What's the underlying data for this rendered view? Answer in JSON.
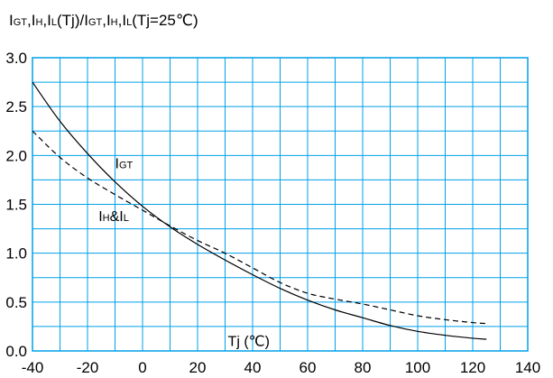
{
  "chart_data": {
    "type": "line",
    "title": {
      "lead": "I",
      "sub1": "GT",
      "t1": ",I",
      "sub2": "H",
      "t2": ",I",
      "sub3": "L",
      "t3": "(Tj)/I",
      "sub4": "GT",
      "t4": ",I",
      "sub5": "H",
      "t5": ",I",
      "sub6": "L",
      "t6": "(Tj=25℃)"
    },
    "xlim": [
      -40,
      140
    ],
    "ylim": [
      0.0,
      3.0
    ],
    "x_ticks": [
      -40,
      -20,
      0,
      20,
      40,
      60,
      80,
      100,
      120,
      140
    ],
    "x_tick_labels": [
      "-40",
      "-20",
      "0",
      "20",
      "40",
      "60",
      "80",
      "100",
      "120",
      "140"
    ],
    "y_ticks": [
      0.0,
      0.5,
      1.0,
      1.5,
      2.0,
      2.5,
      3.0
    ],
    "y_tick_labels": [
      "0.0",
      "0.5",
      "1.0",
      "1.5",
      "2.0",
      "2.5",
      "3.0"
    ],
    "grid": true,
    "grid_x_step": 10,
    "grid_y_step": 0.25,
    "grid_color": "#00a0e8",
    "series": [
      {
        "name": "IGT",
        "style": "solid",
        "color": "#000000",
        "x": [
          -40,
          -30,
          -20,
          -10,
          0,
          10,
          20,
          30,
          40,
          50,
          60,
          70,
          80,
          90,
          100,
          110,
          120,
          125
        ],
        "y": [
          2.75,
          2.35,
          2.02,
          1.73,
          1.48,
          1.27,
          1.09,
          0.93,
          0.78,
          0.64,
          0.52,
          0.42,
          0.34,
          0.26,
          0.2,
          0.16,
          0.13,
          0.12
        ]
      },
      {
        "name": "IH&IL",
        "style": "dashed",
        "color": "#000000",
        "x": [
          -40,
          -30,
          -20,
          -10,
          0,
          10,
          20,
          30,
          40,
          50,
          60,
          70,
          80,
          90,
          100,
          110,
          120,
          125
        ],
        "y": [
          2.25,
          1.98,
          1.77,
          1.6,
          1.44,
          1.28,
          1.13,
          1.0,
          0.85,
          0.7,
          0.59,
          0.53,
          0.48,
          0.42,
          0.36,
          0.32,
          0.29,
          0.28
        ]
      }
    ],
    "annotations": {
      "igt": {
        "main": "I",
        "sub": "GT",
        "at": [
          -10,
          1.87
        ]
      },
      "ihil": {
        "m1": "I",
        "s1": "H",
        "m2": "&I",
        "s2": "L",
        "at": [
          -16,
          1.33
        ]
      },
      "xlabel": {
        "text": "Tj (℃)",
        "at": [
          31,
          0.05
        ]
      }
    }
  }
}
